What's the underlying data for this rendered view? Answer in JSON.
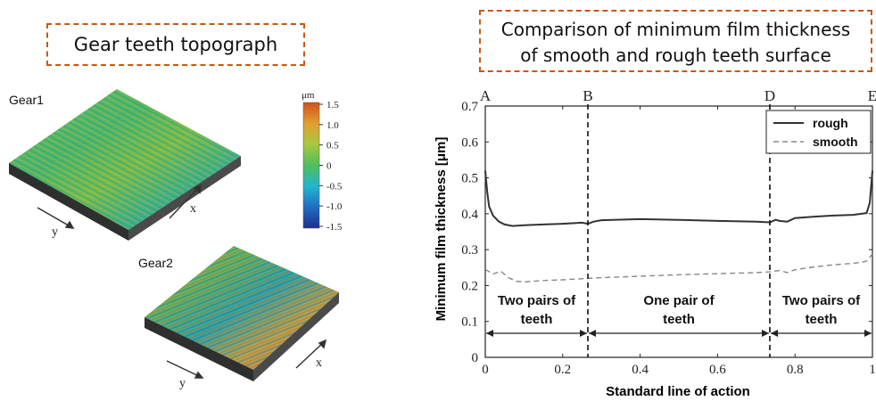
{
  "left": {
    "title": "Gear teeth topograph",
    "gear1": "Gear1",
    "gear2": "Gear2",
    "axis_x": "x",
    "axis_y": "y",
    "colorbar": {
      "unit": "μm",
      "ticks": [
        "1.5",
        "1.0",
        "0.5",
        "0",
        "-0.5",
        "-1.0",
        "-1.5"
      ],
      "colors": [
        "#1e2f8f",
        "#1f6fc4",
        "#22b5cf",
        "#4fbf5a",
        "#a8c840",
        "#e0a030",
        "#d2501c"
      ]
    }
  },
  "right": {
    "title_line1": "Comparison of minimum film thickness",
    "title_line2": "of smooth and rough teeth surface"
  },
  "chart_data": {
    "type": "line",
    "xlabel": "Standard line of action",
    "ylabel": "Minimum film thickness  [μm]",
    "xlim": [
      0,
      1
    ],
    "ylim": [
      0,
      0.7
    ],
    "xticks": [
      "0",
      "0.2",
      "0.4",
      "0.6",
      "0.8",
      "1"
    ],
    "yticks": [
      "0",
      "0.1",
      "0.2",
      "0.3",
      "0.4",
      "0.5",
      "0.6",
      "0.7"
    ],
    "top_points": [
      {
        "label": "A",
        "x": 0
      },
      {
        "label": "B",
        "x": 0.265
      },
      {
        "label": "D",
        "x": 0.735
      },
      {
        "label": "E",
        "x": 1
      }
    ],
    "regions": [
      {
        "line1": "Two pairs of",
        "line2": "teeth",
        "from": 0,
        "to": 0.265
      },
      {
        "line1": "One pair of",
        "line2": "teeth",
        "from": 0.265,
        "to": 0.735
      },
      {
        "line1": "Two pairs of",
        "line2": "teeth",
        "from": 0.735,
        "to": 1
      }
    ],
    "legend_position": "top-right",
    "series": [
      {
        "name": "rough",
        "style": "solid",
        "color": "#333333",
        "x": [
          0,
          0.005,
          0.01,
          0.02,
          0.035,
          0.05,
          0.07,
          0.1,
          0.15,
          0.2,
          0.25,
          0.265,
          0.28,
          0.3,
          0.4,
          0.5,
          0.6,
          0.7,
          0.735,
          0.75,
          0.76,
          0.78,
          0.8,
          0.85,
          0.9,
          0.95,
          0.985,
          0.993,
          1.0
        ],
        "y": [
          0.52,
          0.46,
          0.42,
          0.395,
          0.378,
          0.37,
          0.366,
          0.368,
          0.37,
          0.372,
          0.375,
          0.372,
          0.378,
          0.382,
          0.385,
          0.383,
          0.38,
          0.378,
          0.376,
          0.383,
          0.38,
          0.378,
          0.388,
          0.392,
          0.395,
          0.397,
          0.402,
          0.43,
          0.52
        ]
      },
      {
        "name": "smooth",
        "style": "dashed",
        "color": "#888888",
        "x": [
          0,
          0.02,
          0.04,
          0.06,
          0.08,
          0.1,
          0.15,
          0.2,
          0.265,
          0.3,
          0.4,
          0.5,
          0.6,
          0.7,
          0.735,
          0.76,
          0.78,
          0.8,
          0.85,
          0.9,
          0.95,
          0.97,
          0.985,
          1.0
        ],
        "y": [
          0.245,
          0.232,
          0.24,
          0.222,
          0.212,
          0.21,
          0.214,
          0.216,
          0.22,
          0.222,
          0.226,
          0.23,
          0.233,
          0.236,
          0.238,
          0.242,
          0.236,
          0.244,
          0.252,
          0.258,
          0.262,
          0.264,
          0.268,
          0.288
        ]
      }
    ]
  }
}
